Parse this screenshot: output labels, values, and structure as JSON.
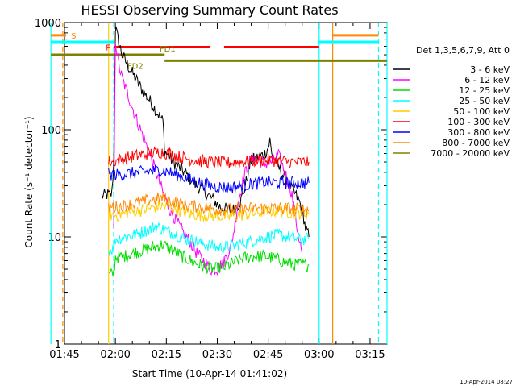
{
  "chart_data": {
    "type": "line",
    "title": "HESSI Observing Summary Count Rates",
    "xlabel": "Start Time (10-Apr-14 01:41:02)",
    "ylabel": "Count Rate (s⁻¹ detector⁻¹)",
    "x_tick_labels": [
      "01:45",
      "02:00",
      "02:15",
      "02:30",
      "02:45",
      "03:00",
      "03:15"
    ],
    "x_range_minutes": [
      105,
      200
    ],
    "y_scale": "log",
    "ylim": [
      1,
      1000
    ],
    "y_tick_labels": [
      "1",
      "10",
      "100",
      "1000"
    ],
    "legend_title": "Det 1,3,5,6,7,9, Att 0",
    "legend_placement": "right",
    "timestamp": "10-Apr-2014 08:27",
    "series": [
      {
        "name": "3 - 6 keV",
        "color": "#000000",
        "x": [
          116,
          118,
          118.5,
          119,
          119.5,
          120,
          121,
          122,
          124,
          126,
          128,
          130,
          132,
          134,
          134.5,
          135,
          137,
          139,
          141,
          143,
          145,
          147,
          149,
          150,
          151,
          153,
          155,
          157,
          158,
          159,
          160,
          162,
          164,
          165,
          165.5,
          166,
          168,
          170,
          172,
          174,
          175,
          175.5,
          176,
          176.5,
          177
        ],
        "y": [
          24,
          25,
          24,
          26,
          50,
          900,
          650,
          500,
          380,
          300,
          230,
          190,
          150,
          120,
          65,
          60,
          50,
          44,
          38,
          32,
          28,
          25,
          22,
          20,
          19,
          18,
          18,
          22,
          28,
          38,
          52,
          55,
          60,
          68,
          80,
          60,
          45,
          35,
          28,
          22,
          18,
          15,
          12,
          11,
          10
        ]
      },
      {
        "name": "6 - 12 keV",
        "color": "#ff00ff",
        "x": [
          119.5,
          120,
          121,
          122,
          124,
          126,
          128,
          130,
          132,
          134,
          136,
          138,
          140,
          142,
          144,
          146,
          148,
          150,
          152,
          154,
          155,
          156,
          158,
          160,
          162,
          164,
          166,
          168,
          170,
          172,
          173,
          174,
          175
        ],
        "y": [
          12,
          700,
          400,
          300,
          200,
          130,
          90,
          60,
          40,
          26,
          18,
          14,
          11,
          9,
          7,
          6,
          5,
          5,
          6,
          8,
          12,
          20,
          38,
          55,
          52,
          48,
          50,
          58,
          40,
          25,
          15,
          10,
          7
        ]
      },
      {
        "name": "12 - 25 keV",
        "color": "#00dd00",
        "x": [
          118,
          119,
          119.5,
          120,
          122,
          125,
          128,
          131,
          134,
          137,
          140,
          143,
          146,
          149,
          152,
          155,
          158,
          161,
          164,
          167,
          170,
          173,
          176,
          177
        ],
        "y": [
          4.4,
          4.5,
          4.6,
          6.5,
          6.5,
          7,
          7.5,
          8,
          8.5,
          7.5,
          6.5,
          5.8,
          5.3,
          5,
          5.2,
          5.8,
          6.4,
          6.6,
          6.6,
          6.3,
          5.8,
          5.5,
          5.5,
          5.5
        ]
      },
      {
        "name": "25 - 50 keV",
        "color": "#00ffff",
        "x": [
          118,
          119,
          119.5,
          120,
          123,
          126,
          129,
          132,
          135,
          138,
          141,
          144,
          147,
          150,
          153,
          156,
          159,
          162,
          165,
          168,
          171,
          174,
          177
        ],
        "y": [
          7.5,
          7.7,
          7.8,
          9.5,
          10,
          10.5,
          11.5,
          12.5,
          11.5,
          10.5,
          9.5,
          9,
          8.5,
          8,
          8,
          8.5,
          9,
          9.5,
          10,
          10.5,
          10,
          9.5,
          9.5
        ]
      },
      {
        "name": "50 - 100 keV",
        "color": "#ffcc00",
        "x": [
          118,
          121,
          124,
          127,
          130,
          133,
          136,
          139,
          142,
          145,
          148,
          151,
          154,
          157,
          160,
          163,
          166,
          169,
          172,
          175,
          177
        ],
        "y": [
          16,
          16,
          17,
          17.5,
          18.5,
          19.5,
          19,
          17.5,
          16.5,
          16,
          16,
          15.5,
          15.5,
          16,
          16.5,
          17,
          17.5,
          17.5,
          17,
          16.5,
          16.5
        ]
      },
      {
        "name": "100 - 300 keV",
        "color": "#ff0000",
        "x": [
          118,
          121,
          124,
          127,
          130,
          133,
          136,
          139,
          142,
          145,
          148,
          151,
          154,
          157,
          160,
          163,
          166,
          169,
          172,
          175,
          177
        ],
        "y": [
          50,
          52,
          55,
          58,
          60,
          62,
          60,
          56,
          53,
          51,
          50,
          49,
          49,
          50,
          51,
          52,
          52,
          51,
          50,
          50,
          50
        ]
      },
      {
        "name": "300 - 800 keV",
        "color": "#0000ff",
        "x": [
          118,
          121,
          124,
          127,
          130,
          133,
          136,
          139,
          142,
          145,
          148,
          151,
          154,
          157,
          160,
          163,
          166,
          169,
          172,
          175,
          177
        ],
        "y": [
          38,
          38,
          39,
          40,
          41,
          42,
          40,
          37,
          34,
          32,
          30,
          29,
          29,
          30,
          31,
          32,
          32,
          32,
          32,
          32,
          32
        ]
      },
      {
        "name": "800 - 7000 keV",
        "color": "#ff8800",
        "x": [
          118,
          121,
          124,
          127,
          130,
          133,
          136,
          139,
          142,
          145,
          148,
          151,
          154,
          157,
          160,
          163,
          166,
          169,
          172,
          175,
          177
        ],
        "y": [
          19,
          19,
          20,
          21,
          22,
          23,
          22,
          20.5,
          19.5,
          19,
          18.5,
          18,
          18,
          18,
          18.5,
          18.5,
          18.5,
          18.5,
          18.5,
          18,
          18
        ]
      },
      {
        "name": "7000 - 20000 keV",
        "color": "#808000",
        "x": [],
        "y": []
      }
    ],
    "state_bars": [
      {
        "label": "S",
        "color": "#ff8800",
        "segments": [
          [
            101,
            105.5
          ]
        ]
      },
      {
        "label": "F",
        "color": "#ff0000",
        "segments": [
          [
            119.5,
            148
          ],
          [
            152,
            180
          ]
        ]
      },
      {
        "label": "FD1",
        "color": "#808000",
        "segments": [
          [
            101,
            134.5
          ]
        ]
      },
      {
        "label": "FD2",
        "color": "#808000",
        "segments": [
          [
            134.5,
            200
          ]
        ]
      }
    ],
    "orbit_bars": [
      {
        "color": "#00ffff",
        "segments": [
          [
            101,
            119.5
          ],
          [
            179.5,
            197.5
          ]
        ],
        "level": 660
      },
      {
        "color": "#ff8800",
        "segments": [
          [
            184,
            197.5
          ]
        ],
        "level": 760
      }
    ],
    "vertical_markers": [
      {
        "x": 101,
        "color": "#00ffff",
        "style": "solid"
      },
      {
        "x": 104.5,
        "color": "#ff8800",
        "style": "dashed"
      },
      {
        "x": 118,
        "color": "#ffcc00",
        "style": "solid"
      },
      {
        "x": 119.5,
        "color": "#00ffff",
        "style": "dashed"
      },
      {
        "x": 180,
        "color": "#00ffff",
        "style": "solid"
      },
      {
        "x": 184,
        "color": "#ff8800",
        "style": "solid"
      },
      {
        "x": 197.5,
        "color": "#00ffff",
        "style": "dashed"
      },
      {
        "x": 200,
        "color": "#00ffff",
        "style": "solid"
      }
    ]
  }
}
